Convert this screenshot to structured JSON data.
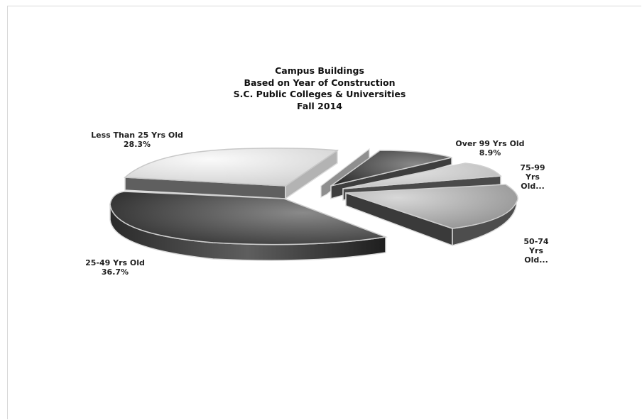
{
  "chart_data": {
    "type": "pie",
    "title_lines": [
      "Campus Buildings",
      "Based on Year of Construction",
      "S.C.  Public Colleges & Universities",
      "Fall 2014"
    ],
    "slices": [
      {
        "label": "Less Than 25 Yrs Old",
        "value_label": "28.3%",
        "value": 28.3
      },
      {
        "label": "",
        "value_label": "",
        "value": 2.0
      },
      {
        "label": "Over 99 Yrs Old",
        "value_label": "8.9%",
        "value": 8.9
      },
      {
        "label": "75-99 Yrs Old...",
        "value_label": "",
        "value": 7.0
      },
      {
        "label": "50-74 Yrs Old...",
        "value_label": "",
        "value": 17.1
      },
      {
        "label": "25-49 Yrs Old",
        "value_label": "36.7%",
        "value": 36.7
      }
    ]
  }
}
